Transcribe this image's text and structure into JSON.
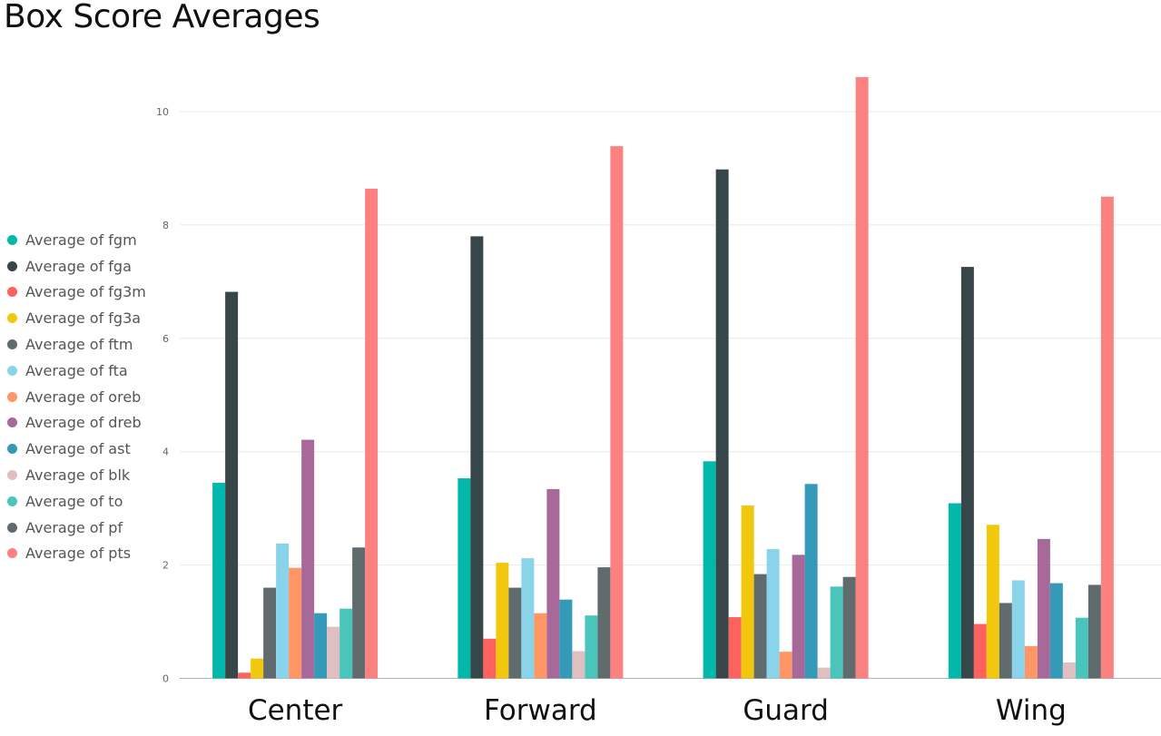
{
  "chart_data": {
    "type": "bar",
    "title": "Box Score Averages",
    "xlabel": "",
    "ylabel": "",
    "ylim": [
      0,
      10.7
    ],
    "yticks": [
      0,
      2,
      4,
      6,
      8,
      10
    ],
    "grid": true,
    "legend_position": "left",
    "categories": [
      "Center",
      "Forward",
      "Guard",
      "Wing"
    ],
    "series": [
      {
        "name": "Average of fgm",
        "color": "#01B8AA",
        "values": [
          3.45,
          3.53,
          3.83,
          3.09
        ]
      },
      {
        "name": "Average of fga",
        "color": "#374649",
        "values": [
          6.82,
          7.8,
          8.98,
          7.26
        ]
      },
      {
        "name": "Average of fg3m",
        "color": "#FD625E",
        "values": [
          0.1,
          0.7,
          1.08,
          0.96
        ]
      },
      {
        "name": "Average of fg3a",
        "color": "#F2C80F",
        "values": [
          0.35,
          2.04,
          3.05,
          2.71
        ]
      },
      {
        "name": "Average of ftm",
        "color": "#5F6B6D",
        "values": [
          1.6,
          1.6,
          1.84,
          1.33
        ]
      },
      {
        "name": "Average of fta",
        "color": "#8AD4EB",
        "values": [
          2.38,
          2.12,
          2.28,
          1.73
        ]
      },
      {
        "name": "Average of oreb",
        "color": "#FE9666",
        "values": [
          1.95,
          1.15,
          0.47,
          0.57
        ]
      },
      {
        "name": "Average of dreb",
        "color": "#A66999",
        "values": [
          4.21,
          3.34,
          2.18,
          2.46
        ]
      },
      {
        "name": "Average of ast",
        "color": "#3599B8",
        "values": [
          1.15,
          1.39,
          3.43,
          1.68
        ]
      },
      {
        "name": "Average of blk",
        "color": "#DFBFBF",
        "values": [
          0.91,
          0.48,
          0.19,
          0.28
        ]
      },
      {
        "name": "Average of to",
        "color": "#4AC5BB",
        "values": [
          1.23,
          1.11,
          1.62,
          1.07
        ]
      },
      {
        "name": "Average of pf",
        "color": "#5F6B6D",
        "values": [
          2.31,
          1.96,
          1.79,
          1.65
        ]
      },
      {
        "name": "Average of pts",
        "color": "#FB8281",
        "values": [
          8.64,
          9.39,
          10.61,
          8.5
        ]
      }
    ]
  }
}
